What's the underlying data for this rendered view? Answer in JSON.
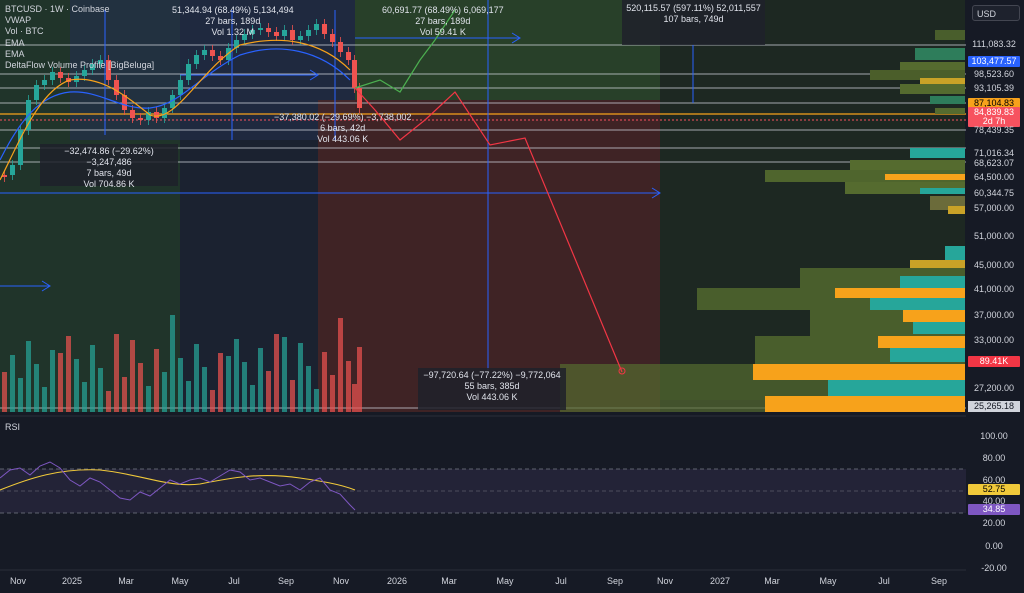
{
  "legend": {
    "symbol": "BTCUSD · 1W · Coinbase",
    "lines": [
      "VWAP",
      "Vol · BTC",
      "EMA",
      "EMA",
      "DeltaFlow Volume Profile [BigBeluga]"
    ]
  },
  "currency_button": "USD",
  "rsi_label": "RSI",
  "price_axis": [
    "111,083.32",
    "98,523.60",
    "93,105.39",
    "78,439.35",
    "71,016.34",
    "68,623.07",
    "64,500.00",
    "60,344.75",
    "57,000.00",
    "51,000.00",
    "45,000.00",
    "41,000.00",
    "37,000.00",
    "33,000.00",
    "27,200.00",
    "25,265.18"
  ],
  "price_tags": {
    "ema_blue": {
      "text": "103,477.57",
      "color": "#2962ff"
    },
    "ema_gold": {
      "text": "87,104.83",
      "color": "#f7a21b"
    },
    "last_price": {
      "text": "84,839.83",
      "color": "#f7525f"
    },
    "countdown": {
      "text": "2d 7h",
      "color": "#f7525f"
    },
    "volume": {
      "text": "89.41K",
      "color": "#f23645"
    }
  },
  "rsi_axis": [
    "100.00",
    "80.00",
    "40.00",
    "20.00",
    "0.00",
    "-20.00"
  ],
  "rsi_tags": {
    "signal": {
      "text": "52.75",
      "color": "#f0c93a"
    },
    "rsi": {
      "text": "34.85",
      "color": "#7e57c2"
    },
    "level60": {
      "text": "60.00"
    }
  },
  "time_axis": [
    "Nov",
    "2025",
    "Mar",
    "May",
    "Jul",
    "Sep",
    "Nov",
    "2026",
    "Mar",
    "May",
    "Jul",
    "Sep",
    "Nov",
    "2027",
    "Mar",
    "May",
    "Jul",
    "Sep"
  ],
  "measures": {
    "m1": [
      "51,344.94 (68.49%) 5,134,494",
      "27 bars, 189d",
      "Vol 1.32 M"
    ],
    "m2": [
      "60,691.77 (68.49%) 6,069,177",
      "27 bars, 189d",
      "Vol 59.41 K"
    ],
    "m3": [
      "520,115.57 (597.11%) 52,011,557",
      "107 bars, 749d"
    ],
    "m4": [
      "−32,474.86 (−29.62%) −3,247,486",
      "7 bars, 49d",
      "Vol 704.86 K"
    ],
    "m5": [
      "−37,380.02 (−29.69%) −3,738,002",
      "6 bars, 42d",
      "Vol 443.06 K"
    ],
    "m6": [
      "−97,720.64 (−77.22%) −9,772,064",
      "55 bars, 385d",
      "Vol 443.06 K"
    ]
  },
  "colors": {
    "background": "#161a25",
    "bull": "#26a69a",
    "bear": "#ef5350",
    "ema_fast": "#2962ff",
    "ema_slow": "#f7a21b",
    "projection_up": "#4caf50",
    "projection_down": "#f23645",
    "rsi_line": "#7e57c2",
    "rsi_signal": "#f0c93a"
  }
}
